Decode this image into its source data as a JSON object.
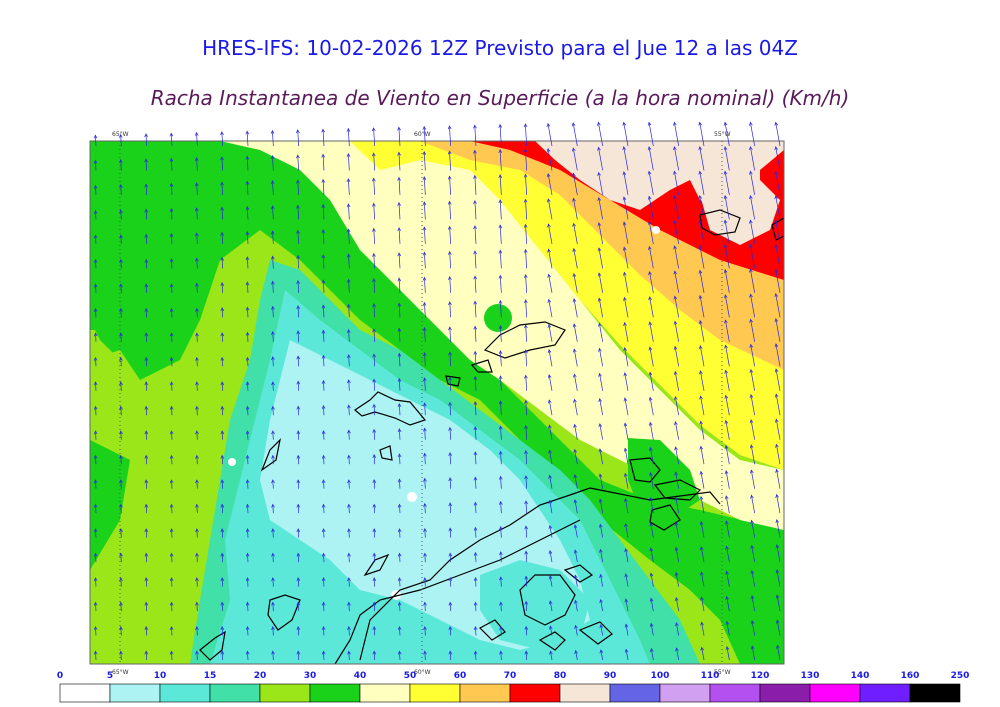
{
  "title": "HRES-IFS: 10-02-2026 12Z Previsto para el Jue 12 a las 04Z",
  "subtitle": "Racha Instantanea de Viento en Superficie (a la hora nominal) (Km/h)",
  "longitude_labels": [
    "65°W",
    "60°W",
    "55°W"
  ],
  "legend": {
    "ticks": [
      "0",
      "5",
      "10",
      "15",
      "20",
      "30",
      "40",
      "50",
      "60",
      "70",
      "80",
      "90",
      "100",
      "110",
      "120",
      "130",
      "140",
      "160",
      "250"
    ],
    "colors": [
      "#ffffff",
      "#adf3f3",
      "#5ce8d8",
      "#40e0a8",
      "#9ae619",
      "#19d219",
      "#ffffc0",
      "#ffff33",
      "#ffc850",
      "#ff0000",
      "#f5e6d7",
      "#6464e6",
      "#d2a0f0",
      "#b450f0",
      "#8a1eaa",
      "#ff00ff",
      "#6e1eff",
      "#000000"
    ]
  },
  "colors": {
    "title_color": "#1a1ae6",
    "subtitle_color": "#5a1a5a",
    "wind_arrow_color": "#2828dc",
    "coastline_color": "#000000"
  }
}
